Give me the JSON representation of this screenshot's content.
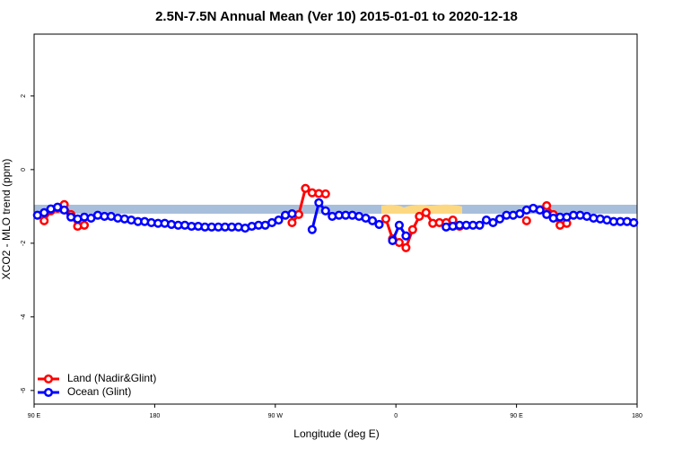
{
  "chart_data": {
    "type": "line",
    "title": "2.5N-7.5N Annual Mean (Ver 10)   2015-01-01 to 2020-12-18",
    "x_label": "Longitude (deg E)",
    "y_label": "XCO2 - MLO trend (ppm)",
    "xlim": [
      90,
      540
    ],
    "xticks": [
      {
        "value": 90,
        "label": "90 E"
      },
      180,
      {
        "value": 270,
        "label": "90 W"
      },
      {
        "value": 360,
        "label": "0"
      },
      {
        "value": 450,
        "label": "90 E"
      },
      {
        "value": 540,
        "label": "180"
      }
    ],
    "ylim": [
      -6.37,
      3.68
    ],
    "yticks": [
      -6,
      -4,
      -2,
      0,
      2
    ],
    "legend": "bottom-left",
    "x": [
      92.5,
      97.5,
      102.5,
      107.5,
      112.5,
      117.5,
      122.5,
      127.5,
      132.5,
      137.5,
      142.5,
      147.5,
      152.5,
      157.5,
      162.5,
      167.5,
      172.5,
      177.5,
      182.5,
      187.5,
      192.5,
      197.5,
      202.5,
      207.5,
      212.5,
      217.5,
      222.5,
      227.5,
      232.5,
      237.5,
      242.5,
      247.5,
      252.5,
      257.5,
      262.5,
      267.5,
      272.5,
      277.5,
      282.5,
      287.5,
      292.5,
      297.5,
      302.5,
      307.5,
      312.5,
      317.5,
      322.5,
      327.5,
      332.5,
      337.5,
      342.5,
      347.5,
      352.5,
      357.5,
      362.5,
      367.5,
      372.5,
      377.5,
      382.5,
      387.5,
      392.5,
      397.5,
      402.5,
      407.5,
      412.5,
      417.5,
      422.5,
      427.5,
      432.5,
      437.5,
      442.5,
      447.5,
      452.5,
      457.5,
      462.5,
      467.5,
      472.5,
      477.5,
      482.5,
      487.5,
      492.5,
      497.5,
      502.5,
      507.5,
      512.5,
      517.5,
      522.5,
      527.5,
      532.5,
      537.5
    ],
    "series": [
      {
        "name": "Land (Nadir&Glint)",
        "color": "#ff0000",
        "values": [
          null,
          -1.39,
          -1.12,
          -1.05,
          -0.95,
          -1.22,
          -1.54,
          -1.51,
          null,
          null,
          null,
          null,
          null,
          null,
          null,
          null,
          null,
          null,
          null,
          null,
          null,
          null,
          null,
          null,
          null,
          null,
          null,
          null,
          null,
          null,
          null,
          null,
          null,
          null,
          null,
          null,
          null,
          null,
          -1.44,
          -1.22,
          -0.51,
          -0.63,
          -0.65,
          -0.66,
          null,
          null,
          null,
          null,
          null,
          null,
          null,
          null,
          -1.34,
          -1.88,
          -1.98,
          -2.12,
          -1.63,
          -1.27,
          -1.17,
          -1.46,
          -1.44,
          -1.44,
          -1.37,
          -1.54,
          null,
          null,
          null,
          null,
          null,
          null,
          null,
          null,
          null,
          -1.39,
          null,
          null,
          -0.98,
          -1.22,
          -1.51,
          -1.46,
          null,
          null,
          null,
          null,
          null,
          null,
          null,
          null,
          null,
          null
        ]
      },
      {
        "name": "Ocean (Glint)",
        "color": "#0000ff",
        "values": [
          -1.24,
          -1.17,
          -1.07,
          -1.02,
          -1.1,
          -1.29,
          -1.34,
          -1.29,
          -1.32,
          -1.24,
          -1.27,
          -1.27,
          -1.32,
          -1.34,
          -1.37,
          -1.41,
          -1.41,
          -1.44,
          -1.46,
          -1.46,
          -1.49,
          -1.51,
          -1.51,
          -1.54,
          -1.54,
          -1.56,
          -1.56,
          -1.56,
          -1.56,
          -1.56,
          -1.56,
          -1.59,
          -1.54,
          -1.51,
          -1.51,
          -1.44,
          -1.37,
          -1.24,
          -1.2,
          null,
          null,
          -1.63,
          -0.9,
          -1.12,
          -1.27,
          -1.24,
          -1.24,
          -1.24,
          -1.27,
          -1.32,
          -1.39,
          -1.49,
          null,
          -1.93,
          -1.51,
          -1.8,
          null,
          null,
          null,
          null,
          null,
          -1.56,
          -1.54,
          -1.51,
          -1.51,
          -1.51,
          -1.51,
          -1.37,
          -1.44,
          -1.34,
          -1.24,
          -1.24,
          -1.2,
          -1.1,
          -1.05,
          -1.1,
          -1.22,
          -1.32,
          -1.29,
          -1.29,
          -1.24,
          -1.24,
          -1.27,
          -1.32,
          -1.34,
          -1.37,
          -1.41,
          -1.41,
          -1.41,
          -1.44
        ]
      }
    ]
  }
}
